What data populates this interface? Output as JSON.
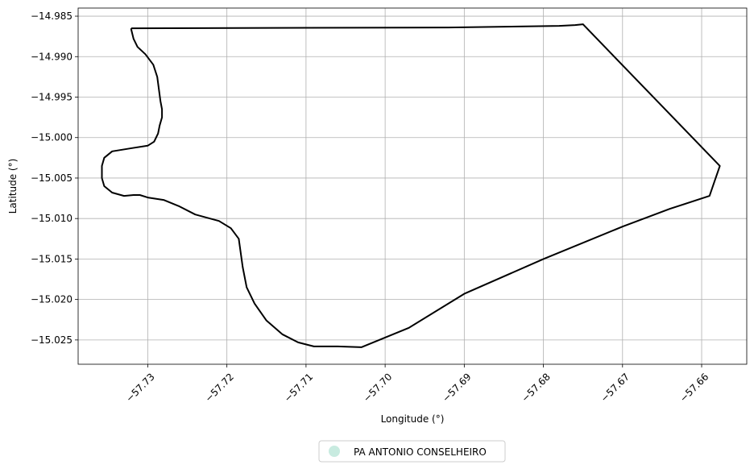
{
  "chart_data": {
    "type": "map",
    "xlabel": "Longitude (°)",
    "ylabel": "Latitude (°)",
    "xlim": [
      -57.7388,
      -57.6543
    ],
    "ylim": [
      -15.028,
      -14.984
    ],
    "grid": true,
    "legend_position": "bottom-center",
    "x_ticks": [
      -57.73,
      -57.72,
      -57.71,
      -57.7,
      -57.69,
      -57.68,
      -57.67,
      -57.66
    ],
    "x_tick_labels": [
      "−57.73",
      "−57.72",
      "−57.71",
      "−57.70",
      "−57.69",
      "−57.68",
      "−57.67",
      "−57.66"
    ],
    "y_ticks": [
      -14.985,
      -14.99,
      -14.995,
      -15.0,
      -15.005,
      -15.01,
      -15.015,
      -15.02,
      -15.025
    ],
    "y_tick_labels": [
      "−14.985",
      "−14.990",
      "−14.995",
      "−15.000",
      "−15.005",
      "−15.010",
      "−15.015",
      "−15.020",
      "−15.025"
    ],
    "legend": [
      {
        "label": "PA ANTONIO CONSELHEIRO",
        "color": "#c8ebe0"
      }
    ],
    "boundary_color": "#000000",
    "boundary": [
      [
        -57.732,
        -14.9865
      ],
      [
        -57.692,
        -14.9864
      ],
      [
        -57.678,
        -14.9862
      ],
      [
        -57.676,
        -14.9861
      ],
      [
        -57.675,
        -14.986
      ],
      [
        -57.6748,
        -14.9862
      ],
      [
        -57.6577,
        -15.0035
      ],
      [
        -57.659,
        -15.0072
      ],
      [
        -57.664,
        -15.0088
      ],
      [
        -57.67,
        -15.011
      ],
      [
        -57.68,
        -15.015
      ],
      [
        -57.69,
        -15.0193
      ],
      [
        -57.697,
        -15.0235
      ],
      [
        -57.703,
        -15.0259
      ],
      [
        -57.706,
        -15.0258
      ],
      [
        -57.709,
        -15.0258
      ],
      [
        -57.711,
        -15.0253
      ],
      [
        -57.713,
        -15.0243
      ],
      [
        -57.715,
        -15.0226
      ],
      [
        -57.7165,
        -15.0205
      ],
      [
        -57.7175,
        -15.0185
      ],
      [
        -57.718,
        -15.016
      ],
      [
        -57.7185,
        -15.0125
      ],
      [
        -57.7195,
        -15.0112
      ],
      [
        -57.721,
        -15.0103
      ],
      [
        -57.724,
        -15.0095
      ],
      [
        -57.726,
        -15.0085
      ],
      [
        -57.728,
        -15.0077
      ],
      [
        -57.73,
        -15.0074
      ],
      [
        -57.731,
        -15.0071
      ],
      [
        -57.7318,
        -15.0071
      ],
      [
        -57.733,
        -15.0072
      ],
      [
        -57.7345,
        -15.0068
      ],
      [
        -57.7355,
        -15.006
      ],
      [
        -57.7358,
        -15.005
      ],
      [
        -57.7358,
        -15.0035
      ],
      [
        -57.7355,
        -15.0025
      ],
      [
        -57.7345,
        -15.0017
      ],
      [
        -57.732,
        -15.0013
      ],
      [
        -57.73,
        -15.001
      ],
      [
        -57.7292,
        -15.0005
      ],
      [
        -57.7287,
        -14.9995
      ],
      [
        -57.7285,
        -14.9985
      ],
      [
        -57.7282,
        -14.9975
      ],
      [
        -57.7282,
        -14.9965
      ],
      [
        -57.7284,
        -14.9955
      ],
      [
        -57.7286,
        -14.994
      ],
      [
        -57.7288,
        -14.9925
      ],
      [
        -57.7293,
        -14.991
      ],
      [
        -57.7303,
        -14.9897
      ],
      [
        -57.7313,
        -14.9888
      ],
      [
        -57.7318,
        -14.9878
      ],
      [
        -57.7321,
        -14.9866
      ],
      [
        -57.732,
        -14.9865
      ]
    ]
  }
}
